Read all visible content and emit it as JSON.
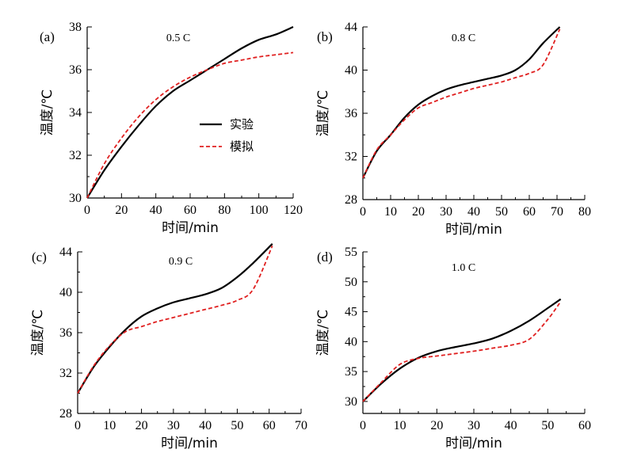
{
  "chart_data": [
    {
      "type": "line",
      "panel": "(a)",
      "title": "0.5 C",
      "xlabel": "时间/min",
      "ylabel": "温度/℃",
      "xlim": [
        0,
        120
      ],
      "ylim": [
        30,
        38
      ],
      "xticks": [
        0,
        20,
        40,
        60,
        80,
        100,
        120
      ],
      "yticks": [
        30,
        32,
        34,
        36,
        38
      ],
      "legend": {
        "position": "center",
        "entries": [
          "实验",
          "模拟"
        ]
      },
      "series": [
        {
          "name": "实验",
          "style": "solid",
          "color": "#000000",
          "x": [
            0,
            10,
            20,
            30,
            40,
            50,
            60,
            70,
            80,
            90,
            100,
            110,
            120
          ],
          "y": [
            30.0,
            31.3,
            32.4,
            33.4,
            34.3,
            35.0,
            35.5,
            36.0,
            36.5,
            37.0,
            37.4,
            37.65,
            38.0
          ]
        },
        {
          "name": "模拟",
          "style": "dashed",
          "color": "#e02020",
          "x": [
            0,
            10,
            20,
            30,
            40,
            50,
            60,
            70,
            80,
            90,
            100,
            110,
            120
          ],
          "y": [
            30.0,
            31.6,
            32.8,
            33.8,
            34.6,
            35.2,
            35.65,
            36.0,
            36.3,
            36.45,
            36.6,
            36.7,
            36.8
          ]
        }
      ]
    },
    {
      "type": "line",
      "panel": "(b)",
      "title": "0.8 C",
      "xlabel": "时间/min",
      "ylabel": "温度/℃",
      "xlim": [
        0,
        80
      ],
      "ylim": [
        28,
        44
      ],
      "xticks": [
        0,
        10,
        20,
        30,
        40,
        50,
        60,
        70,
        80
      ],
      "yticks": [
        28,
        32,
        36,
        40,
        44
      ],
      "series": [
        {
          "name": "实验",
          "style": "solid",
          "color": "#000000",
          "x": [
            0,
            5,
            10,
            15,
            20,
            25,
            30,
            35,
            40,
            45,
            50,
            55,
            60,
            65,
            71
          ],
          "y": [
            30.0,
            32.5,
            34.0,
            35.6,
            36.8,
            37.6,
            38.2,
            38.6,
            38.9,
            39.2,
            39.5,
            40.0,
            41.0,
            42.5,
            44.0
          ]
        },
        {
          "name": "模拟",
          "style": "dashed",
          "color": "#e02020",
          "x": [
            0,
            5,
            10,
            15,
            20,
            25,
            30,
            35,
            40,
            45,
            50,
            55,
            60,
            65,
            71
          ],
          "y": [
            30.0,
            32.6,
            34.0,
            35.4,
            36.5,
            37.0,
            37.5,
            37.9,
            38.3,
            38.6,
            38.9,
            39.3,
            39.7,
            40.5,
            43.8
          ]
        }
      ]
    },
    {
      "type": "line",
      "panel": "(c)",
      "title": "0.9 C",
      "xlabel": "时间/min",
      "ylabel": "温度/℃",
      "xlim": [
        0,
        70
      ],
      "ylim": [
        28,
        44
      ],
      "xticks": [
        0,
        10,
        20,
        30,
        40,
        50,
        60,
        70
      ],
      "yticks": [
        28,
        32,
        36,
        40,
        44
      ],
      "series": [
        {
          "name": "实验",
          "style": "solid",
          "color": "#000000",
          "x": [
            0,
            5,
            10,
            15,
            20,
            25,
            30,
            35,
            40,
            45,
            50,
            55,
            61
          ],
          "y": [
            30.0,
            32.6,
            34.6,
            36.3,
            37.6,
            38.4,
            39.0,
            39.4,
            39.8,
            40.4,
            41.5,
            42.9,
            44.8
          ]
        },
        {
          "name": "模拟",
          "style": "dashed",
          "color": "#e02020",
          "x": [
            0,
            5,
            10,
            15,
            20,
            25,
            30,
            35,
            40,
            45,
            50,
            55,
            61
          ],
          "y": [
            30.0,
            32.7,
            34.7,
            36.1,
            36.6,
            37.1,
            37.5,
            37.9,
            38.3,
            38.7,
            39.2,
            40.3,
            44.6
          ]
        }
      ]
    },
    {
      "type": "line",
      "panel": "(d)",
      "title": "1.0 C",
      "xlabel": "时间/min",
      "ylabel": "温度/℃",
      "xlim": [
        0,
        60
      ],
      "ylim": [
        28,
        55
      ],
      "xticks": [
        0,
        10,
        20,
        30,
        40,
        50,
        60
      ],
      "yticks": [
        30,
        35,
        40,
        45,
        50,
        55
      ],
      "series": [
        {
          "name": "实验",
          "style": "solid",
          "color": "#000000",
          "x": [
            0,
            5,
            10,
            15,
            20,
            25,
            30,
            35,
            40,
            45,
            50,
            53.5
          ],
          "y": [
            30.0,
            33.0,
            35.5,
            37.3,
            38.4,
            39.1,
            39.7,
            40.5,
            41.8,
            43.5,
            45.6,
            47.1
          ]
        },
        {
          "name": "模拟",
          "style": "dashed",
          "color": "#e02020",
          "x": [
            0,
            5,
            10,
            15,
            20,
            25,
            30,
            35,
            40,
            45,
            50,
            53.5
          ],
          "y": [
            30.0,
            33.2,
            36.2,
            37.2,
            37.6,
            38.0,
            38.4,
            38.9,
            39.4,
            40.4,
            43.7,
            46.7
          ]
        }
      ]
    }
  ]
}
